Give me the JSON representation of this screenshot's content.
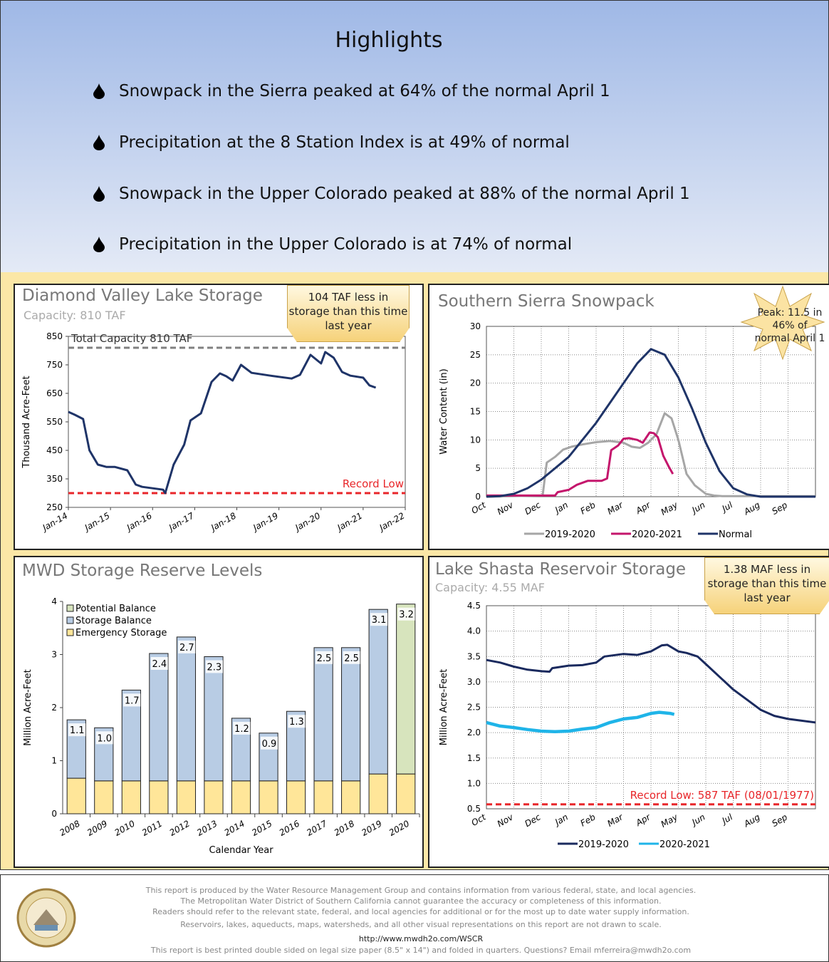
{
  "header": {
    "title": "Highlights",
    "bullets": [
      "Snowpack in the Sierra peaked at 64% of the normal April 1",
      "Precipitation at the 8 Station Index is at 49% of normal",
      "Snowpack in the Upper Colorado peaked at  88% of the normal April 1",
      "Precipitation in the Upper Colorado is at  74% of normal"
    ]
  },
  "chart_data": [
    {
      "type": "line",
      "title": "Diamond Valley Lake Storage",
      "subtitle": "Capacity: 810 TAF",
      "annotation": "104 TAF less in storage than this time last year",
      "ylabel": "Thousand Acre-Feet",
      "xlim": [
        2014,
        2022
      ],
      "xticks": [
        {
          "value": 2014,
          "label": "Jan-14"
        },
        {
          "value": 2015,
          "label": "Jan-15"
        },
        {
          "value": 2016,
          "label": "Jan-16"
        },
        {
          "value": 2017,
          "label": "Jan-17"
        },
        {
          "value": 2018,
          "label": "Jan-18"
        },
        {
          "value": 2019,
          "label": "Jan-19"
        },
        {
          "value": 2020,
          "label": "Jan-20"
        },
        {
          "value": 2021,
          "label": "Jan-21"
        },
        {
          "value": 2022,
          "label": "Jan-22"
        }
      ],
      "ylim": [
        250,
        850
      ],
      "yticks": [
        250,
        350,
        450,
        550,
        650,
        750,
        850
      ],
      "grid": false,
      "reference_lines": [
        {
          "value": 810,
          "label": "Total Capacity 810 TAF",
          "color": "#808080"
        },
        {
          "value": 300,
          "label": "Record Low",
          "color": "#e8262a"
        }
      ],
      "series": [
        {
          "color": "#1f3468",
          "x": [
            2014,
            2014.15,
            2014.35,
            2014.5,
            2014.7,
            2014.9,
            2015.1,
            2015.4,
            2015.6,
            2015.75,
            2016,
            2016.25,
            2016.3,
            2016.5,
            2016.75,
            2016.9,
            2017.15,
            2017.4,
            2017.6,
            2017.75,
            2017.9,
            2018.1,
            2018.35,
            2018.8,
            2019.3,
            2019.5,
            2019.75,
            2020,
            2020.1,
            2020.3,
            2020.5,
            2020.7,
            2021,
            2021.15,
            2021.3
          ],
          "values": [
            585,
            575,
            560,
            450,
            400,
            392,
            392,
            380,
            330,
            322,
            317,
            312,
            300,
            400,
            470,
            555,
            580,
            690,
            720,
            710,
            695,
            750,
            722,
            712,
            702,
            715,
            785,
            755,
            795,
            775,
            725,
            712,
            705,
            678,
            670
          ]
        }
      ]
    },
    {
      "type": "line",
      "title": "Southern Sierra Snowpack",
      "annotation": "Peak: 11.5 in 46% of normal April 1",
      "ylabel": "Water Content (in)",
      "xlim": [
        0,
        12
      ],
      "xticks": [
        {
          "value": 0,
          "label": "Oct"
        },
        {
          "value": 1,
          "label": "Nov"
        },
        {
          "value": 2,
          "label": "Dec"
        },
        {
          "value": 3,
          "label": "Jan"
        },
        {
          "value": 4,
          "label": "Feb"
        },
        {
          "value": 5,
          "label": "Mar"
        },
        {
          "value": 6,
          "label": "Apr"
        },
        {
          "value": 7,
          "label": "May"
        },
        {
          "value": 8,
          "label": "Jun"
        },
        {
          "value": 9,
          "label": "Jul"
        },
        {
          "value": 10,
          "label": "Aug"
        },
        {
          "value": 11,
          "label": "Sep"
        }
      ],
      "ylim": [
        0,
        30
      ],
      "yticks": [
        0,
        5,
        10,
        15,
        20,
        25,
        30
      ],
      "grid": true,
      "legend": "bottom",
      "series": [
        {
          "name": "2019-2020",
          "color": "#a6a6a6",
          "x": [
            0,
            2.05,
            2.2,
            2.5,
            2.8,
            3.1,
            3.5,
            4,
            4.5,
            5,
            5.3,
            5.6,
            5.9,
            6.2,
            6.5,
            6.75,
            7,
            7.3,
            7.6,
            8,
            8.3,
            8.6,
            12
          ],
          "values": [
            0,
            0.2,
            6,
            7,
            8.3,
            8.8,
            9.2,
            9.6,
            9.8,
            9.5,
            8.8,
            8.6,
            9.5,
            11,
            14.7,
            13.8,
            10,
            4,
            2,
            0.5,
            0.2,
            0.1,
            0.1
          ]
        },
        {
          "name": "2020-2021",
          "color": "#c4166c",
          "x": [
            0,
            2.5,
            2.6,
            3.0,
            3.3,
            3.7,
            4.2,
            4.4,
            4.55,
            4.8,
            5.0,
            5.2,
            5.5,
            5.7,
            5.95,
            6.1,
            6.25,
            6.45,
            6.65,
            6.8
          ],
          "values": [
            0.2,
            0.2,
            0.8,
            1.2,
            2.1,
            2.8,
            2.8,
            3.2,
            8.2,
            9,
            10.2,
            10.3,
            10,
            9.5,
            11.3,
            11.2,
            10.5,
            7.2,
            5.3,
            4
          ]
        },
        {
          "name": "Normal",
          "color": "#1f3468",
          "x": [
            0,
            0.5,
            1,
            1.5,
            2,
            2.5,
            3,
            3.5,
            4,
            4.5,
            5,
            5.5,
            6,
            6.5,
            7,
            7.5,
            8,
            8.5,
            9,
            9.5,
            10,
            12
          ],
          "values": [
            0,
            0.1,
            0.5,
            1.5,
            3,
            5,
            7,
            10,
            13,
            16.5,
            20,
            23.5,
            26,
            25,
            21,
            15.5,
            9.5,
            4.5,
            1.5,
            0.4,
            0,
            0
          ]
        }
      ]
    },
    {
      "type": "bar",
      "title": "MWD Storage Reserve Levels",
      "ylabel": "Million Acre-Feet",
      "xlabel": "Calendar Year",
      "categories": [
        "2008",
        "2009",
        "2010",
        "2011",
        "2012",
        "2013",
        "2014",
        "2015",
        "2016",
        "2017",
        "2018",
        "2019",
        "2020"
      ],
      "ylim": [
        0,
        4
      ],
      "yticks": [
        0,
        1,
        2,
        3,
        4
      ],
      "grid": false,
      "legend": "top-left",
      "series": [
        {
          "name": "Emergency Storage",
          "color": "#ffe699",
          "values": [
            0.67,
            0.62,
            0.62,
            0.62,
            0.62,
            0.62,
            0.62,
            0.62,
            0.62,
            0.62,
            0.62,
            0.75,
            0.75
          ]
        },
        {
          "name": "Storage Balance",
          "color": "#b8cce4",
          "values": [
            1.1,
            1.0,
            1.71,
            2.4,
            2.71,
            2.34,
            1.18,
            0.9,
            1.31,
            2.51,
            2.51,
            3.1,
            null
          ],
          "value_labels": [
            "1.1",
            "1.0",
            "1.7",
            "2.4",
            "2.7",
            "2.3",
            "1.2",
            "0.9",
            "1.3",
            "2.5",
            "2.5",
            "3.1",
            null
          ]
        },
        {
          "name": "Potential Balance",
          "color": "#d7e4bd",
          "values": [
            null,
            null,
            null,
            null,
            null,
            null,
            null,
            null,
            null,
            null,
            null,
            null,
            3.2
          ],
          "value_labels": [
            null,
            null,
            null,
            null,
            null,
            null,
            null,
            null,
            null,
            null,
            null,
            null,
            "3.2"
          ]
        }
      ]
    },
    {
      "type": "line",
      "title": "Lake Shasta Reservoir Storage",
      "subtitle": "Capacity: 4.55 MAF",
      "annotation": "1.38 MAF less in storage than this time last year",
      "ylabel": "Million Acre-Feet",
      "xlim": [
        0,
        12
      ],
      "xticks": [
        {
          "value": 0,
          "label": "Oct"
        },
        {
          "value": 1,
          "label": "Nov"
        },
        {
          "value": 2,
          "label": "Dec"
        },
        {
          "value": 3,
          "label": "Jan"
        },
        {
          "value": 4,
          "label": "Feb"
        },
        {
          "value": 5,
          "label": "Mar"
        },
        {
          "value": 6,
          "label": "Apr"
        },
        {
          "value": 7,
          "label": "May"
        },
        {
          "value": 8,
          "label": "Jun"
        },
        {
          "value": 9,
          "label": "Jul"
        },
        {
          "value": 10,
          "label": "Aug"
        },
        {
          "value": 11,
          "label": "Sep"
        }
      ],
      "ylim": [
        0.5,
        4.5
      ],
      "yticks": [
        0.5,
        {
          "value": 1,
          "label": "1.0"
        },
        1.5,
        {
          "value": 2,
          "label": "2.0"
        },
        2.5,
        {
          "value": 3,
          "label": "3.0"
        },
        3.5,
        {
          "value": 4,
          "label": "4.0"
        },
        4.5
      ],
      "grid": true,
      "legend": "bottom",
      "reference_lines": [
        {
          "value": 0.587,
          "label": "Record Low: 587 TAF (08/01/1977)",
          "color": "#e8262a"
        }
      ],
      "series": [
        {
          "name": "2019-2020",
          "color": "#1a2a5e",
          "x": [
            0,
            0.5,
            1,
            1.5,
            2,
            2.3,
            2.4,
            3,
            3.5,
            4,
            4.3,
            5,
            5.5,
            6,
            6.4,
            6.6,
            7,
            7.3,
            7.7,
            8,
            8.5,
            9,
            9.5,
            10,
            10.5,
            11,
            12
          ],
          "values": [
            3.43,
            3.38,
            3.3,
            3.24,
            3.21,
            3.2,
            3.27,
            3.32,
            3.33,
            3.38,
            3.5,
            3.55,
            3.53,
            3.6,
            3.72,
            3.73,
            3.6,
            3.57,
            3.5,
            3.35,
            3.1,
            2.85,
            2.65,
            2.45,
            2.33,
            2.27,
            2.2
          ]
        },
        {
          "name": "2020-2021",
          "color": "#1fb4e8",
          "x": [
            0,
            0.5,
            1,
            1.5,
            2,
            2.5,
            3,
            3.5,
            4,
            4.5,
            5,
            5.5,
            6,
            6.3,
            6.7,
            6.85
          ],
          "values": [
            2.2,
            2.13,
            2.1,
            2.06,
            2.03,
            2.02,
            2.03,
            2.07,
            2.1,
            2.2,
            2.27,
            2.3,
            2.38,
            2.4,
            2.38,
            2.36
          ]
        }
      ]
    }
  ],
  "footer": {
    "lines": [
      "This report is produced by the Water Resource Management Group and contains information from various federal, state, and local agencies.",
      "The Metropolitan Water District of Southern California  cannot guarantee the accuracy or completeness of this information.",
      "Readers should refer to the relevant state, federal, and local agencies for additional or for the most up to date water supply information.",
      "Reservoirs, lakes, aqueducts, maps, watersheds, and all other visual representations on this report are not drawn to scale."
    ],
    "link": "http://www.mwdh2o.com/WSCR",
    "note": "This report is best printed double sided on legal size paper (8.5\" x 14\") and folded in quarters. Questions? Email mferreira@mwdh2o.com"
  }
}
